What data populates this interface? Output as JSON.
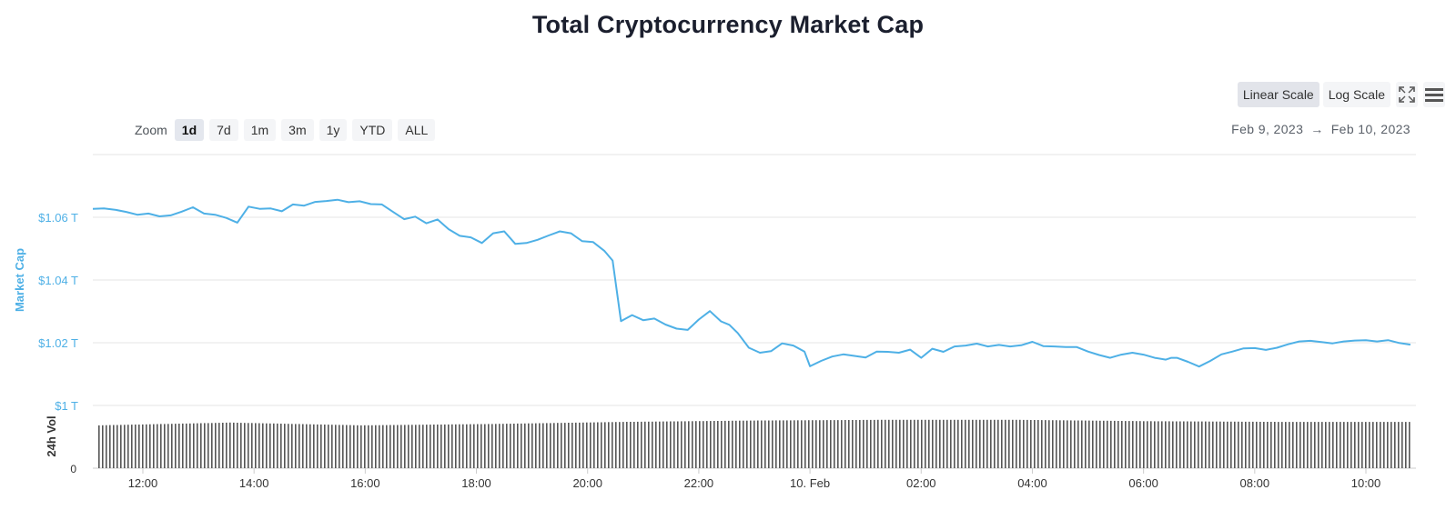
{
  "title": "Total Cryptocurrency Market Cap",
  "zoom": {
    "label": "Zoom",
    "options": [
      "1d",
      "7d",
      "1m",
      "3m",
      "1y",
      "YTD",
      "ALL"
    ],
    "active": "1d"
  },
  "scale": {
    "linear_label": "Linear Scale",
    "log_label": "Log Scale",
    "active": "linear"
  },
  "toolbar_icons": [
    "fullscreen-icon",
    "menu-icon"
  ],
  "date_range": {
    "from": "Feb 9, 2023",
    "arrow": "→",
    "to": "Feb 10, 2023"
  },
  "colors": {
    "line": "#4eb0e6",
    "volume": "#555555",
    "grid": "#e6e6e6",
    "axis_label": "#4eb0e6"
  },
  "chart_data": {
    "type": "line",
    "title": "Total Cryptocurrency Market Cap",
    "ylabel": "Market Cap",
    "ylabel2": "24h Vol",
    "ylim": [
      1.0,
      1.08
    ],
    "yticks": [
      "$1 T",
      "$1.02 T",
      "$1.04 T",
      "$1.06 T"
    ],
    "ytick_values": [
      1.0,
      1.02,
      1.04,
      1.06
    ],
    "volume_tick": "0",
    "xlim": [
      11.1,
      34.9
    ],
    "xticks": [
      "12:00",
      "14:00",
      "16:00",
      "18:00",
      "20:00",
      "22:00",
      "10. Feb",
      "02:00",
      "04:00",
      "06:00",
      "08:00",
      "10:00"
    ],
    "xtick_values": [
      12,
      14,
      16,
      18,
      20,
      22,
      24,
      26,
      28,
      30,
      32,
      34
    ],
    "grid": true,
    "series": [
      {
        "name": "Market Cap",
        "unit": "T USD",
        "x": [
          11.1,
          11.3,
          11.5,
          11.7,
          11.9,
          12.1,
          12.3,
          12.5,
          12.7,
          12.9,
          13.1,
          13.3,
          13.5,
          13.7,
          13.9,
          14.1,
          14.3,
          14.5,
          14.7,
          14.9,
          15.1,
          15.3,
          15.5,
          15.7,
          15.9,
          16.1,
          16.3,
          16.5,
          16.7,
          16.9,
          17.1,
          17.3,
          17.5,
          17.7,
          17.9,
          18.1,
          18.3,
          18.5,
          18.7,
          18.9,
          19.1,
          19.3,
          19.5,
          19.7,
          19.9,
          20.1,
          20.3,
          20.45,
          20.6,
          20.8,
          21.0,
          21.2,
          21.4,
          21.6,
          21.8,
          22.0,
          22.2,
          22.4,
          22.55,
          22.7,
          22.9,
          23.1,
          23.3,
          23.5,
          23.7,
          23.9,
          24.0,
          24.2,
          24.4,
          24.6,
          24.8,
          25.0,
          25.2,
          25.4,
          25.6,
          25.8,
          26.0,
          26.2,
          26.4,
          26.6,
          26.8,
          27.0,
          27.2,
          27.4,
          27.6,
          27.8,
          28.0,
          28.2,
          28.4,
          28.6,
          28.8,
          29.0,
          29.2,
          29.4,
          29.6,
          29.8,
          30.0,
          30.2,
          30.4,
          30.5,
          30.6,
          30.8,
          31.0,
          31.2,
          31.4,
          31.6,
          31.8,
          32.0,
          32.2,
          32.4,
          32.6,
          32.8,
          33.0,
          33.2,
          33.4,
          33.6,
          33.8,
          34.0,
          34.2,
          34.4,
          34.6,
          34.8
        ],
        "values": [
          1.0627,
          1.0628,
          1.0624,
          1.0617,
          1.0608,
          1.0612,
          1.0603,
          1.0606,
          1.0618,
          1.0632,
          1.0612,
          1.0608,
          1.0598,
          1.0583,
          1.0634,
          1.0627,
          1.0628,
          1.0619,
          1.0641,
          1.0637,
          1.0649,
          1.0652,
          1.0656,
          1.0648,
          1.0651,
          1.0642,
          1.0641,
          1.0617,
          1.0594,
          1.0602,
          1.0581,
          1.0593,
          1.0562,
          1.0541,
          1.0536,
          1.0518,
          1.0549,
          1.0555,
          1.0515,
          1.0518,
          1.0528,
          1.0542,
          1.0555,
          1.0549,
          1.0524,
          1.0521,
          1.0493,
          1.0462,
          1.0269,
          1.0288,
          1.0272,
          1.0277,
          1.0258,
          1.0245,
          1.0241,
          1.0274,
          1.0301,
          1.0268,
          1.0257,
          1.0231,
          1.0184,
          1.0168,
          1.0173,
          1.0198,
          1.0191,
          1.0172,
          1.0125,
          1.0142,
          1.0156,
          1.0163,
          1.0158,
          1.0153,
          1.0172,
          1.0171,
          1.0168,
          1.0178,
          1.0152,
          1.0181,
          1.0171,
          1.0188,
          1.0191,
          1.0197,
          1.0188,
          1.0193,
          1.0188,
          1.0192,
          1.0203,
          1.0189,
          1.0188,
          1.0186,
          1.0186,
          1.0172,
          1.0161,
          1.0152,
          1.0162,
          1.0168,
          1.0162,
          1.0152,
          1.0146,
          1.0152,
          1.0152,
          1.0139,
          1.0124,
          1.0142,
          1.0163,
          1.0172,
          1.0182,
          1.0183,
          1.0177,
          1.0184,
          1.0195,
          1.0204,
          1.0206,
          1.0202,
          1.0198,
          1.0204,
          1.0207,
          1.0208,
          1.0204,
          1.0208,
          1.0199,
          1.0194
        ]
      },
      {
        "name": "24h Vol",
        "type": "bar",
        "relative_heights": [
          0.62,
          0.66,
          0.62,
          0.64,
          0.67,
          0.69,
          0.7,
          0.7,
          0.68,
          0.67,
          0.67
        ]
      }
    ]
  }
}
